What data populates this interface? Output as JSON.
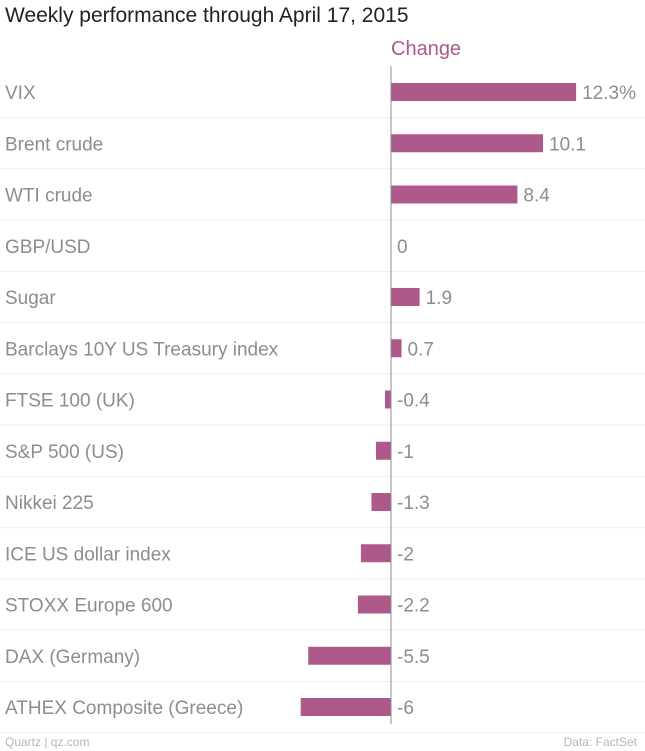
{
  "colors": {
    "bar": "#ad5a8a",
    "axis": "#8e8e8e",
    "grid": "#efefef",
    "label": "#8d8d8d"
  },
  "footer": {
    "source_left": "Quartz | qz.com",
    "source_right": "Data: FactSet"
  },
  "chart_data": {
    "type": "bar",
    "orientation": "horizontal",
    "title": "Weekly performance through April 17, 2015",
    "series_name": "Change",
    "value_suffix_first": "%",
    "categories": [
      "VIX",
      "Brent crude",
      "WTI crude",
      "GBP/USD",
      "Sugar",
      "Barclays 10Y US Treasury index",
      "FTSE 100 (UK)",
      "S&P 500 (US)",
      "Nikkei 225",
      "ICE US dollar index",
      "STOXX Europe 600",
      "DAX (Germany)",
      "ATHEX Composite (Greece)"
    ],
    "values": [
      12.3,
      10.1,
      8.4,
      0,
      1.9,
      0.7,
      -0.4,
      -1,
      -1.3,
      -2,
      -2.2,
      -5.5,
      -6
    ],
    "value_labels": [
      "12.3%",
      "10.1",
      "8.4",
      "0",
      "1.9",
      "0.7",
      "-0.4",
      "-1",
      "-1.3",
      "-2",
      "-2.2",
      "-5.5",
      "-6"
    ],
    "grid": true
  }
}
